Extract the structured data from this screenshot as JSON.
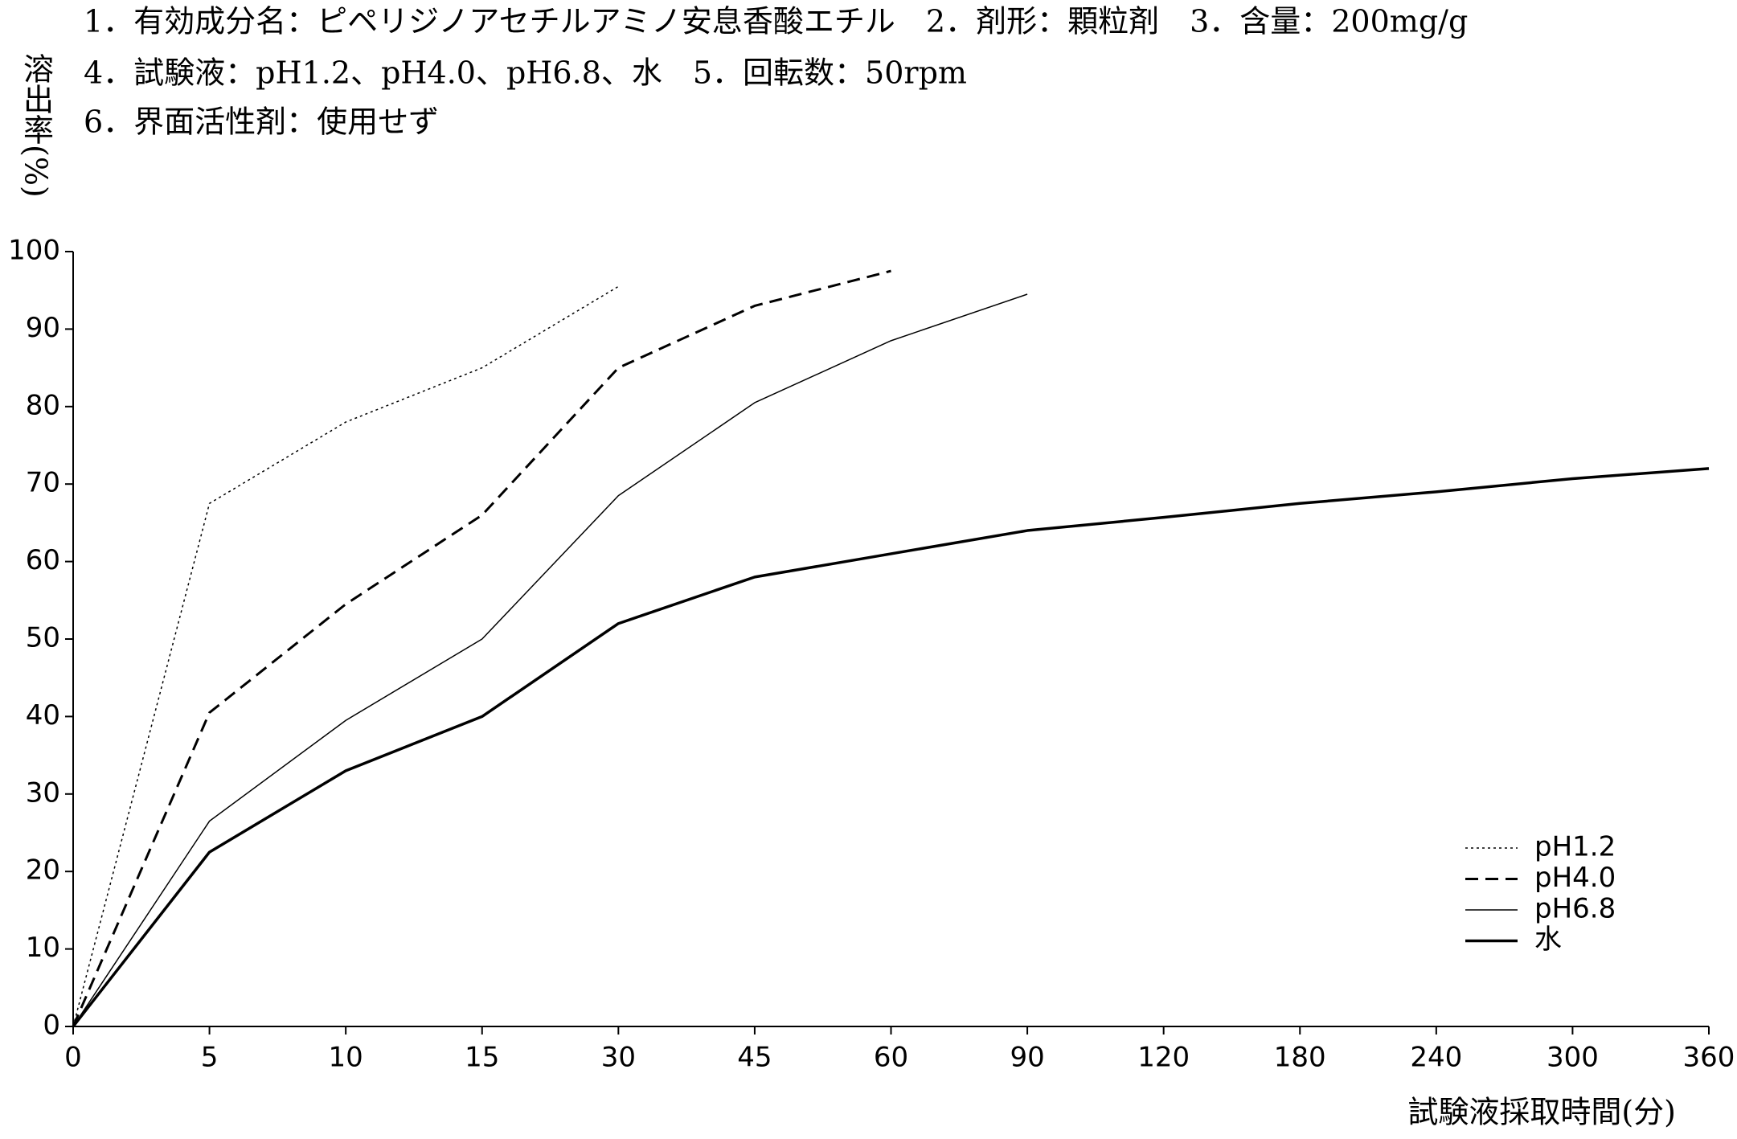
{
  "chart_data": {
    "type": "line",
    "title": [
      "1．有効成分名：ピペリジノアセチルアミノ安息香酸エチル　2．剤形：顆粒剤　3．含量：200mg/g",
      "4．試験液：pH1.2、pH4.0、pH6.8、水　5．回転数：50rpm",
      "6．界面活性剤：使用せず"
    ],
    "y_label": "溶出率(%)",
    "x_label": "試験液採取時間(分)",
    "categories": [
      "0",
      "5",
      "10",
      "15",
      "30",
      "45",
      "60",
      "90",
      "120",
      "180",
      "240",
      "300",
      "360"
    ],
    "series": [
      {
        "name": "pH1.2",
        "color": "#000000",
        "line_style": "dotted",
        "values": [
          0,
          67.5,
          78,
          85,
          95.5,
          null,
          null,
          null,
          null,
          null,
          null,
          null,
          null
        ]
      },
      {
        "name": "pH4.0",
        "color": "#000000",
        "line_style": "dashed",
        "values": [
          0,
          40.5,
          54.5,
          66,
          85,
          93,
          97.5,
          null,
          null,
          null,
          null,
          null,
          null
        ]
      },
      {
        "name": "pH6.8",
        "color": "#000000",
        "line_style": "thin",
        "values": [
          0,
          26.5,
          39.5,
          50,
          68.5,
          80.5,
          88.5,
          94.5,
          null,
          null,
          null,
          null,
          null
        ]
      },
      {
        "name": "水",
        "color": "#000000",
        "line_style": "thick",
        "values": [
          0,
          22.5,
          33,
          40,
          52,
          58,
          61,
          64,
          65.7,
          67.5,
          69,
          70.7,
          72
        ]
      }
    ],
    "ylim": [
      0,
      100
    ],
    "yticks": [
      0,
      10,
      20,
      30,
      40,
      50,
      60,
      70,
      80,
      90,
      100
    ],
    "grid": false,
    "legend": "lower right"
  }
}
